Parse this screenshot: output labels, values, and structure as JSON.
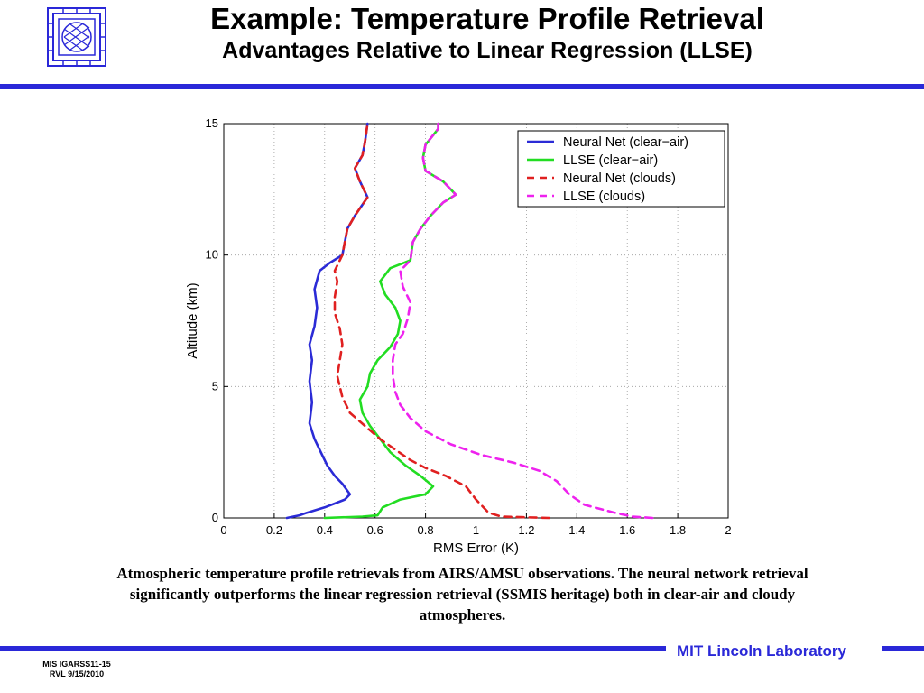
{
  "slide": {
    "title": "Example:  Temperature Profile Retrieval",
    "subtitle": "Advantages Relative to Linear Regression (LLSE)",
    "caption_line1": "Atmospheric temperature profile retrievals from AIRS/AMSU observations.  The neural network retrieval",
    "caption_line2": "significantly outperforms the linear regression retrieval (SSMIS heritage) both in clear-air and cloudy",
    "caption_line3": "atmospheres.",
    "lab_name": "MIT Lincoln Laboratory",
    "footer_line1": "MIS IGARSS11-15",
    "footer_line2": "RVL 9/15/2010",
    "logo_icon": "mit-ll-logo-icon",
    "accent_color": "#2a28d8"
  },
  "chart_data": {
    "type": "line",
    "title": "",
    "xlabel": "RMS Error (K)",
    "ylabel": "Altitude (km)",
    "xlim": [
      0,
      2
    ],
    "ylim": [
      0,
      15
    ],
    "x_ticks": [
      "0",
      "0.2",
      "0.4",
      "0.6",
      "0.8",
      "1",
      "1.2",
      "1.4",
      "1.6",
      "1.8",
      "2"
    ],
    "y_ticks": [
      "0",
      "5",
      "10",
      "15"
    ],
    "grid": true,
    "legend_position": "top-right",
    "series": [
      {
        "name": "Neural Net (clear−air)",
        "color": "#2b2bd6",
        "dash": "solid",
        "points": [
          [
            0.25,
            0
          ],
          [
            0.3,
            0.1
          ],
          [
            0.33,
            0.2
          ],
          [
            0.4,
            0.4
          ],
          [
            0.48,
            0.7
          ],
          [
            0.5,
            0.9
          ],
          [
            0.47,
            1.3
          ],
          [
            0.44,
            1.6
          ],
          [
            0.41,
            2.0
          ],
          [
            0.38,
            2.6
          ],
          [
            0.36,
            3.0
          ],
          [
            0.34,
            3.6
          ],
          [
            0.35,
            4.4
          ],
          [
            0.34,
            5.2
          ],
          [
            0.35,
            6.0
          ],
          [
            0.34,
            6.6
          ],
          [
            0.36,
            7.3
          ],
          [
            0.37,
            8.0
          ],
          [
            0.36,
            8.7
          ],
          [
            0.38,
            9.4
          ],
          [
            0.42,
            9.7
          ],
          [
            0.47,
            10.0
          ],
          [
            0.48,
            10.5
          ],
          [
            0.49,
            11.0
          ],
          [
            0.52,
            11.5
          ],
          [
            0.57,
            12.2
          ],
          [
            0.54,
            12.8
          ],
          [
            0.52,
            13.3
          ],
          [
            0.55,
            13.8
          ],
          [
            0.56,
            14.3
          ],
          [
            0.57,
            15.0
          ]
        ]
      },
      {
        "name": "LLSE (clear−air)",
        "color": "#22dd22",
        "dash": "solid",
        "points": [
          [
            0.4,
            0
          ],
          [
            0.55,
            0.05
          ],
          [
            0.61,
            0.1
          ],
          [
            0.63,
            0.4
          ],
          [
            0.7,
            0.7
          ],
          [
            0.8,
            0.9
          ],
          [
            0.83,
            1.2
          ],
          [
            0.78,
            1.6
          ],
          [
            0.72,
            2.0
          ],
          [
            0.66,
            2.5
          ],
          [
            0.62,
            3.0
          ],
          [
            0.58,
            3.5
          ],
          [
            0.55,
            4.0
          ],
          [
            0.54,
            4.5
          ],
          [
            0.57,
            5.0
          ],
          [
            0.58,
            5.5
          ],
          [
            0.61,
            6.0
          ],
          [
            0.66,
            6.5
          ],
          [
            0.69,
            7.0
          ],
          [
            0.7,
            7.5
          ],
          [
            0.68,
            8.0
          ],
          [
            0.64,
            8.5
          ],
          [
            0.62,
            9.0
          ],
          [
            0.66,
            9.5
          ],
          [
            0.74,
            9.8
          ],
          [
            0.75,
            10.5
          ],
          [
            0.78,
            11.0
          ],
          [
            0.82,
            11.5
          ],
          [
            0.87,
            12.0
          ],
          [
            0.92,
            12.3
          ],
          [
            0.87,
            12.8
          ],
          [
            0.8,
            13.2
          ],
          [
            0.79,
            13.7
          ],
          [
            0.8,
            14.2
          ],
          [
            0.85,
            14.8
          ],
          [
            0.85,
            15.0
          ]
        ]
      },
      {
        "name": "Neural Net (clouds)",
        "color": "#e02020",
        "dash": "dashed",
        "points": [
          [
            1.29,
            0
          ],
          [
            1.1,
            0.05
          ],
          [
            1.05,
            0.2
          ],
          [
            1.0,
            0.7
          ],
          [
            0.96,
            1.2
          ],
          [
            0.88,
            1.6
          ],
          [
            0.8,
            1.9
          ],
          [
            0.74,
            2.2
          ],
          [
            0.68,
            2.6
          ],
          [
            0.62,
            3.0
          ],
          [
            0.56,
            3.5
          ],
          [
            0.5,
            4.0
          ],
          [
            0.47,
            4.6
          ],
          [
            0.45,
            5.4
          ],
          [
            0.46,
            6.0
          ],
          [
            0.47,
            6.6
          ],
          [
            0.46,
            7.2
          ],
          [
            0.44,
            7.8
          ],
          [
            0.44,
            8.4
          ],
          [
            0.45,
            9.0
          ],
          [
            0.44,
            9.4
          ],
          [
            0.46,
            9.8
          ],
          [
            0.47,
            10.0
          ],
          [
            0.48,
            10.5
          ],
          [
            0.49,
            11.0
          ],
          [
            0.52,
            11.5
          ],
          [
            0.57,
            12.2
          ],
          [
            0.54,
            12.8
          ],
          [
            0.52,
            13.3
          ],
          [
            0.55,
            13.8
          ],
          [
            0.56,
            14.3
          ],
          [
            0.57,
            15.0
          ]
        ]
      },
      {
        "name": "LLSE (clouds)",
        "color": "#ee22ee",
        "dash": "dashed",
        "points": [
          [
            1.7,
            0
          ],
          [
            1.62,
            0.05
          ],
          [
            1.55,
            0.2
          ],
          [
            1.43,
            0.5
          ],
          [
            1.37,
            0.9
          ],
          [
            1.32,
            1.4
          ],
          [
            1.25,
            1.8
          ],
          [
            1.15,
            2.1
          ],
          [
            1.02,
            2.4
          ],
          [
            0.9,
            2.8
          ],
          [
            0.8,
            3.3
          ],
          [
            0.74,
            3.8
          ],
          [
            0.7,
            4.3
          ],
          [
            0.68,
            4.8
          ],
          [
            0.67,
            5.4
          ],
          [
            0.67,
            6.0
          ],
          [
            0.68,
            6.6
          ],
          [
            0.71,
            7.0
          ],
          [
            0.73,
            7.6
          ],
          [
            0.74,
            8.2
          ],
          [
            0.71,
            8.8
          ],
          [
            0.7,
            9.4
          ],
          [
            0.74,
            9.8
          ],
          [
            0.75,
            10.5
          ],
          [
            0.78,
            11.0
          ],
          [
            0.82,
            11.5
          ],
          [
            0.87,
            12.0
          ],
          [
            0.92,
            12.3
          ],
          [
            0.87,
            12.8
          ],
          [
            0.8,
            13.2
          ],
          [
            0.79,
            13.7
          ],
          [
            0.8,
            14.2
          ],
          [
            0.85,
            14.8
          ],
          [
            0.85,
            15.0
          ]
        ]
      }
    ]
  }
}
